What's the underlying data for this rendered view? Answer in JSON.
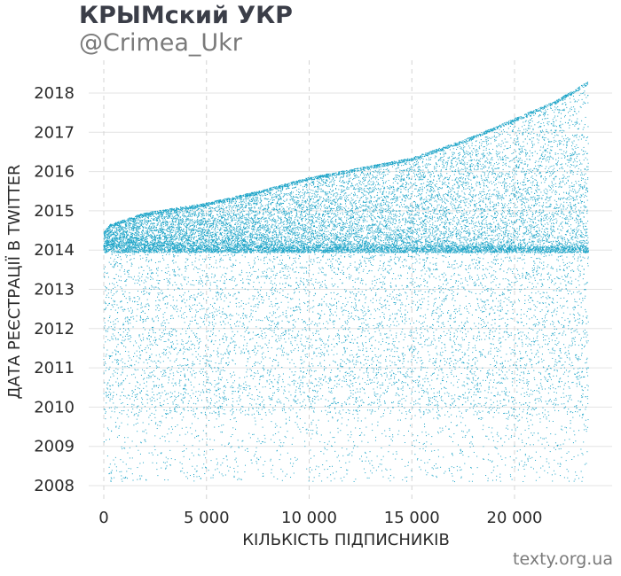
{
  "header": {
    "title": "КРЫМский УКР",
    "subtitle": "@Crimea_Ukr"
  },
  "footer": {
    "credit": "texty.org.ua"
  },
  "colors": {
    "points": "#1aa3c7",
    "gridline": "#e3e3e3",
    "vgridline": "#d4d4d4",
    "text": "#2b2b2b"
  },
  "chart_data": {
    "type": "scatter",
    "title": "КРЫМский УКР",
    "subtitle": "@Crimea_Ukr",
    "xlabel": "КІЛЬКІСТЬ ПІДПИСНИКІВ",
    "ylabel": "ДАТА РЕЄСТРАЦІЇ В TWITTER",
    "xlim": [
      -800,
      24800
    ],
    "ylim": [
      2007.4,
      2018.7
    ],
    "x_ticks": [
      0,
      5000,
      10000,
      15000,
      20000
    ],
    "x_tick_labels": [
      "0",
      "5 000",
      "10 000",
      "15 000",
      "20 000"
    ],
    "y_ticks": [
      2008,
      2009,
      2010,
      2011,
      2012,
      2013,
      2014,
      2015,
      2016,
      2017,
      2018
    ],
    "y_tick_labels": [
      "2008",
      "2009",
      "2010",
      "2011",
      "2012",
      "2013",
      "2014",
      "2015",
      "2016",
      "2017",
      "2018"
    ],
    "grid": true,
    "legend": "none",
    "follower_count": 23600,
    "frontier": [
      {
        "x": 0,
        "y": 2014.45
      },
      {
        "x": 300,
        "y": 2014.65
      },
      {
        "x": 2000,
        "y": 2014.95
      },
      {
        "x": 5000,
        "y": 2015.2
      },
      {
        "x": 7500,
        "y": 2015.5
      },
      {
        "x": 10000,
        "y": 2015.85
      },
      {
        "x": 12500,
        "y": 2016.1
      },
      {
        "x": 15000,
        "y": 2016.35
      },
      {
        "x": 17500,
        "y": 2016.8
      },
      {
        "x": 20000,
        "y": 2017.35
      },
      {
        "x": 22000,
        "y": 2017.8
      },
      {
        "x": 23600,
        "y": 2018.3
      }
    ],
    "density_bands": [
      {
        "from": 2013.9,
        "to": 2014.1,
        "weight": 0.17
      },
      {
        "from": 2014.1,
        "to": 2018.3,
        "weight": 0.55
      },
      {
        "from": 2011.0,
        "to": 2013.9,
        "weight": 0.16
      },
      {
        "from": 2009.8,
        "to": 2011.0,
        "weight": 0.08
      },
      {
        "from": 2008.1,
        "to": 2009.8,
        "weight": 0.04
      }
    ]
  }
}
